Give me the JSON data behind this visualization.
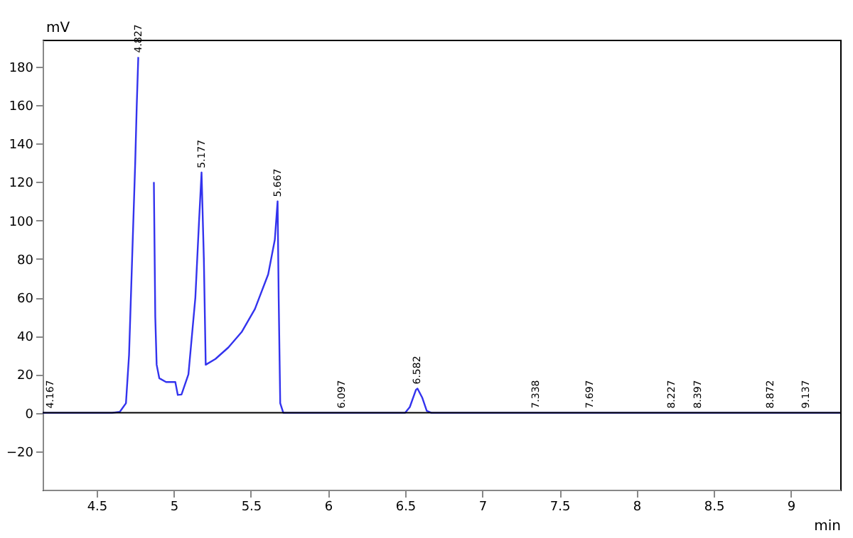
{
  "chart_data": {
    "type": "line",
    "xlabel": "min",
    "ylabel": "mV",
    "x": [
      4.15,
      4.6,
      4.65,
      4.69,
      4.71,
      4.73,
      4.75,
      4.76,
      4.77,
      4.776,
      4.862,
      4.871,
      4.88,
      4.889,
      4.906,
      4.95,
      5.01,
      5.026,
      5.05,
      5.095,
      5.14,
      5.164,
      5.18,
      5.195,
      5.207,
      5.27,
      5.354,
      5.44,
      5.526,
      5.612,
      5.655,
      5.673,
      5.68,
      5.69,
      5.71,
      6.5,
      6.53,
      6.57,
      6.58,
      6.61,
      6.64,
      6.67,
      9.32
    ],
    "series": [
      {
        "color": "#3333ee",
        "values": [
          0,
          0,
          0.5,
          5,
          30,
          80,
          130,
          160,
          185,
          null,
          null,
          120,
          50,
          25,
          18,
          16,
          16,
          9.3,
          9.5,
          20,
          60,
          100,
          125,
          80,
          25,
          28,
          34,
          42,
          54,
          72,
          90,
          110,
          60,
          5,
          0,
          0,
          3,
          12,
          12.6,
          8,
          1,
          0,
          0
        ]
      }
    ],
    "xlim": [
      4.15,
      9.32
    ],
    "ylim": [
      -40,
      194
    ],
    "xticks": [
      4.5,
      5,
      5.5,
      6,
      6.5,
      7,
      7.5,
      8,
      8.5,
      9
    ],
    "yticks": [
      -20,
      0,
      20,
      40,
      60,
      80,
      100,
      120,
      140,
      160,
      180
    ],
    "ref_lines": [
      {
        "axis": "y",
        "value": 0,
        "color": "#000000"
      }
    ],
    "annotations": [
      {
        "text": "4.167",
        "x": 4.2,
        "y": 0
      },
      {
        "text": "4.827",
        "x": 4.77,
        "y": 185
      },
      {
        "text": "5.177",
        "x": 5.18,
        "y": 125
      },
      {
        "text": "5.667",
        "x": 5.673,
        "y": 110
      },
      {
        "text": "6.097",
        "x": 6.09,
        "y": 0
      },
      {
        "text": "6.582",
        "x": 6.58,
        "y": 12.6
      },
      {
        "text": "7.338",
        "x": 7.35,
        "y": 0
      },
      {
        "text": "7.697",
        "x": 7.7,
        "y": 0
      },
      {
        "text": "8.227",
        "x": 8.23,
        "y": 0
      },
      {
        "text": "8.397",
        "x": 8.4,
        "y": 0
      },
      {
        "text": "8.872",
        "x": 8.87,
        "y": 0
      },
      {
        "text": "9.137",
        "x": 9.1,
        "y": 0
      }
    ],
    "grid": false,
    "marker": "none",
    "line_style": "solid"
  }
}
